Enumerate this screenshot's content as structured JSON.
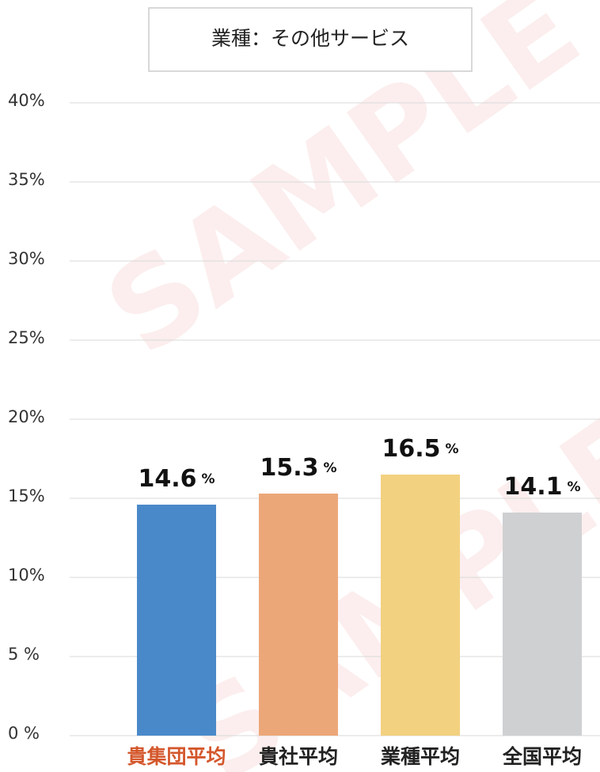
{
  "chart_data": {
    "type": "bar",
    "title": "業種：その他サービス",
    "watermark": "SAMPLE",
    "categories": [
      "貴集団平均",
      "貴社平均",
      "業種平均",
      "全国平均"
    ],
    "category_colors": [
      "#d4572c",
      "#222222",
      "#222222",
      "#222222"
    ],
    "values": [
      14.6,
      15.3,
      16.5,
      14.1
    ],
    "value_labels": [
      "14.6",
      "15.3",
      "16.5",
      "14.1"
    ],
    "unit": "%",
    "colors": [
      "#4a89c9",
      "#eca779",
      "#f2d180",
      "#cfd0d2"
    ],
    "ylim": [
      0,
      40
    ],
    "yticks": [
      {
        "value": 0,
        "label": "0 %"
      },
      {
        "value": 5,
        "label": "5 %"
      },
      {
        "value": 10,
        "label": "10%"
      },
      {
        "value": 15,
        "label": "15%"
      },
      {
        "value": 20,
        "label": "20%"
      },
      {
        "value": 25,
        "label": "25%"
      },
      {
        "value": 30,
        "label": "30%"
      },
      {
        "value": 35,
        "label": "35%"
      },
      {
        "value": 40,
        "label": "40%"
      }
    ],
    "grid": true
  }
}
